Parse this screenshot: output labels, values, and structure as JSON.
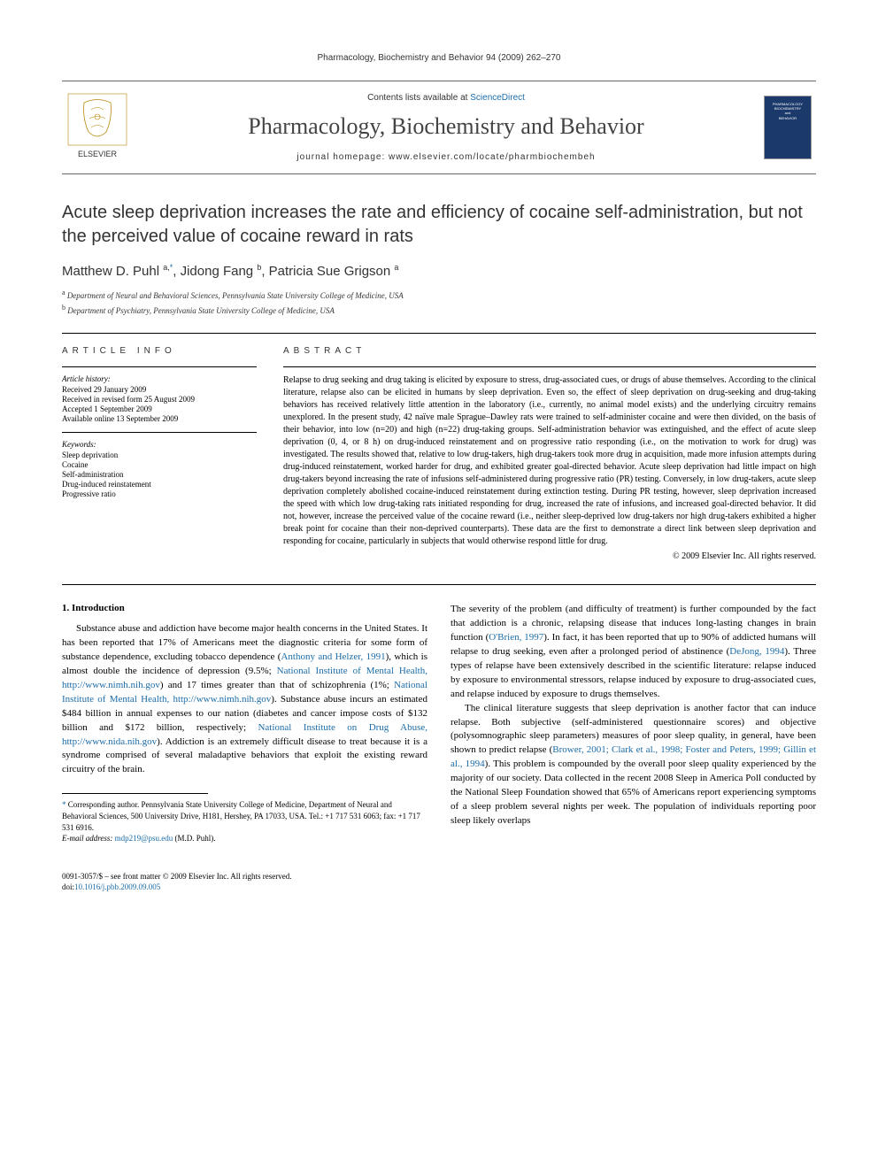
{
  "running_header": "Pharmacology, Biochemistry and Behavior 94 (2009) 262–270",
  "masthead": {
    "contents_prefix": "Contents lists available at ",
    "contents_link": "ScienceDirect",
    "journal_name": "Pharmacology, Biochemistry and Behavior",
    "homepage_prefix": "journal homepage: ",
    "homepage_url": "www.elsevier.com/locate/pharmbiochembeh",
    "publisher_name": "ELSEVIER",
    "cover_line1": "PHARMACOLOGY",
    "cover_line2": "BIOCHEMISTRY",
    "cover_line3": "and",
    "cover_line4": "BEHAVIOR"
  },
  "title": "Acute sleep deprivation increases the rate and efficiency of cocaine self-administration, but not the perceived value of cocaine reward in rats",
  "authors_html": "Matthew D. Puhl <sup>a,</sup><sup class=\"star\">*</sup>, Jidong Fang <sup>b</sup>, Patricia Sue Grigson <sup>a</sup>",
  "affiliations": {
    "a": "Department of Neural and Behavioral Sciences, Pennsylvania State University College of Medicine, USA",
    "b": "Department of Psychiatry, Pennsylvania State University College of Medicine, USA"
  },
  "article_info": {
    "heading": "ARTICLE INFO",
    "history_label": "Article history:",
    "received": "Received 29 January 2009",
    "revised": "Received in revised form 25 August 2009",
    "accepted": "Accepted 1 September 2009",
    "online": "Available online 13 September 2009",
    "keywords_label": "Keywords:",
    "keywords": [
      "Sleep deprivation",
      "Cocaine",
      "Self-administration",
      "Drug-induced reinstatement",
      "Progressive ratio"
    ]
  },
  "abstract": {
    "heading": "ABSTRACT",
    "text": "Relapse to drug seeking and drug taking is elicited by exposure to stress, drug-associated cues, or drugs of abuse themselves. According to the clinical literature, relapse also can be elicited in humans by sleep deprivation. Even so, the effect of sleep deprivation on drug-seeking and drug-taking behaviors has received relatively little attention in the laboratory (i.e., currently, no animal model exists) and the underlying circuitry remains unexplored. In the present study, 42 naïve male Sprague–Dawley rats were trained to self-administer cocaine and were then divided, on the basis of their behavior, into low (n=20) and high (n=22) drug-taking groups. Self-administration behavior was extinguished, and the effect of acute sleep deprivation (0, 4, or 8 h) on drug-induced reinstatement and on progressive ratio responding (i.e., on the motivation to work for drug) was investigated. The results showed that, relative to low drug-takers, high drug-takers took more drug in acquisition, made more infusion attempts during drug-induced reinstatement, worked harder for drug, and exhibited greater goal-directed behavior. Acute sleep deprivation had little impact on high drug-takers beyond increasing the rate of infusions self-administered during progressive ratio (PR) testing. Conversely, in low drug-takers, acute sleep deprivation completely abolished cocaine-induced reinstatement during extinction testing. During PR testing, however, sleep deprivation increased the speed with which low drug-taking rats initiated responding for drug, increased the rate of infusions, and increased goal-directed behavior. It did not, however, increase the perceived value of the cocaine reward (i.e., neither sleep-deprived low drug-takers nor high drug-takers exhibited a higher break point for cocaine than their non-deprived counterparts). These data are the first to demonstrate a direct link between sleep deprivation and responding for cocaine, particularly in subjects that would otherwise respond little for drug.",
    "copyright": "© 2009 Elsevier Inc. All rights reserved."
  },
  "body": {
    "section_heading": "1. Introduction",
    "p1_html": "Substance abuse and addiction have become major health concerns in the United States. It has been reported that 17% of Americans meet the diagnostic criteria for some form of substance dependence, excluding tobacco dependence (<a class=\"ref-link\">Anthony and Helzer, 1991</a>), which is almost double the incidence of depression (9.5%; <a class=\"ref-link\">National Institute of Mental Health, http://www.nimh.nih.gov</a>) and 17 times greater than that of schizophrenia (1%; <a class=\"ref-link\">National Institute of Mental Health, http://www.nimh.nih.gov</a>). Substance abuse incurs an estimated $484 billion in annual expenses to our nation (diabetes and cancer impose costs of $132 billion and $172 billion, respectively; <a class=\"ref-link\">National Institute on Drug Abuse, http://www.nida.nih.gov</a>). Addiction is an extremely difficult disease to treat because it is a syndrome comprised of several maladaptive behaviors that exploit the existing reward circuitry of the brain.",
    "p2_html": "The severity of the problem (and difficulty of treatment) is further compounded by the fact that addiction is a chronic, relapsing disease that induces long-lasting changes in brain function (<a class=\"ref-link\">O'Brien, 1997</a>). In fact, it has been reported that up to 90% of addicted humans will relapse to drug seeking, even after a prolonged period of abstinence (<a class=\"ref-link\">DeJong, 1994</a>). Three types of relapse have been extensively described in the scientific literature: relapse induced by exposure to environmental stressors, relapse induced by exposure to drug-associated cues, and relapse induced by exposure to drugs themselves.",
    "p3_html": "The clinical literature suggests that sleep deprivation is another factor that can induce relapse. Both subjective (self-administered questionnaire scores) and objective (polysomnographic sleep parameters) measures of poor sleep quality, in general, have been shown to predict relapse (<a class=\"ref-link\">Brower, 2001; Clark et al., 1998; Foster and Peters, 1999; Gillin et al., 1994</a>). This problem is compounded by the overall poor sleep quality experienced by the majority of our society. Data collected in the recent 2008 Sleep in America Poll conducted by the National Sleep Foundation showed that 65% of Americans report experiencing symptoms of a sleep problem several nights per week. The population of individuals reporting poor sleep likely overlaps"
  },
  "footnote": {
    "corr_html": "Corresponding author. Pennsylvania State University College of Medicine, Department of Neural and Behavioral Sciences, 500 University Drive, H181, Hershey, PA 17033, USA. Tel.: +1 717 531 6063; fax: +1 717 531 6916.",
    "email_label": "E-mail address:",
    "email": "mdp219@psu.edu",
    "email_suffix": "(M.D. Puhl)."
  },
  "footer": {
    "line1": "0091-3057/$ – see front matter © 2009 Elsevier Inc. All rights reserved.",
    "doi_prefix": "doi:",
    "doi": "10.1016/j.pbb.2009.09.005"
  },
  "colors": {
    "link": "#1b6ca8",
    "text": "#000000",
    "cover_bg": "#1b3a6b"
  }
}
